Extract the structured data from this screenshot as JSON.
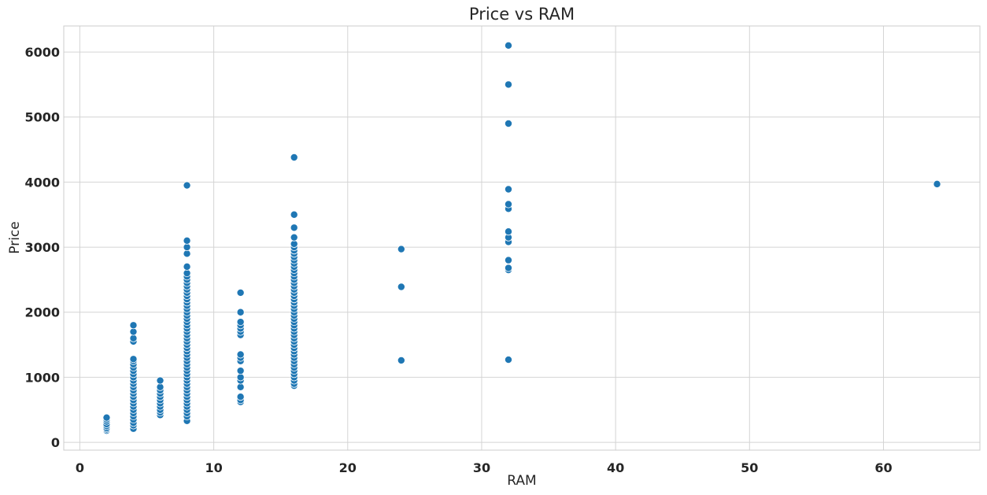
{
  "chart_data": {
    "type": "scatter",
    "title": "Price vs RAM",
    "xlabel": "RAM",
    "ylabel": "Price",
    "xlim": [
      -1.2,
      67.2
    ],
    "ylim": [
      -120,
      6400
    ],
    "xticks": [
      0,
      10,
      20,
      30,
      40,
      50,
      60
    ],
    "yticks": [
      0,
      1000,
      2000,
      3000,
      4000,
      5000,
      6000
    ],
    "grid": true,
    "legend": "none",
    "point_color": "#1f77b4",
    "points": [
      {
        "x": 2,
        "y": 180
      },
      {
        "x": 2,
        "y": 200
      },
      {
        "x": 2,
        "y": 220
      },
      {
        "x": 2,
        "y": 250
      },
      {
        "x": 2,
        "y": 280
      },
      {
        "x": 2,
        "y": 320
      },
      {
        "x": 2,
        "y": 350
      },
      {
        "x": 2,
        "y": 380
      },
      {
        "x": 4,
        "y": 210
      },
      {
        "x": 4,
        "y": 260
      },
      {
        "x": 4,
        "y": 300
      },
      {
        "x": 4,
        "y": 350
      },
      {
        "x": 4,
        "y": 400
      },
      {
        "x": 4,
        "y": 450
      },
      {
        "x": 4,
        "y": 500
      },
      {
        "x": 4,
        "y": 550
      },
      {
        "x": 4,
        "y": 600
      },
      {
        "x": 4,
        "y": 650
      },
      {
        "x": 4,
        "y": 700
      },
      {
        "x": 4,
        "y": 750
      },
      {
        "x": 4,
        "y": 800
      },
      {
        "x": 4,
        "y": 850
      },
      {
        "x": 4,
        "y": 900
      },
      {
        "x": 4,
        "y": 950
      },
      {
        "x": 4,
        "y": 1000
      },
      {
        "x": 4,
        "y": 1050
      },
      {
        "x": 4,
        "y": 1100
      },
      {
        "x": 4,
        "y": 1150
      },
      {
        "x": 4,
        "y": 1200
      },
      {
        "x": 4,
        "y": 1250
      },
      {
        "x": 4,
        "y": 1280
      },
      {
        "x": 4,
        "y": 1550
      },
      {
        "x": 4,
        "y": 1600
      },
      {
        "x": 4,
        "y": 1700
      },
      {
        "x": 4,
        "y": 1800
      },
      {
        "x": 6,
        "y": 420
      },
      {
        "x": 6,
        "y": 460
      },
      {
        "x": 6,
        "y": 500
      },
      {
        "x": 6,
        "y": 550
      },
      {
        "x": 6,
        "y": 600
      },
      {
        "x": 6,
        "y": 650
      },
      {
        "x": 6,
        "y": 700
      },
      {
        "x": 6,
        "y": 750
      },
      {
        "x": 6,
        "y": 800
      },
      {
        "x": 6,
        "y": 850
      },
      {
        "x": 6,
        "y": 950
      },
      {
        "x": 8,
        "y": 330
      },
      {
        "x": 8,
        "y": 400
      },
      {
        "x": 8,
        "y": 450
      },
      {
        "x": 8,
        "y": 500
      },
      {
        "x": 8,
        "y": 550
      },
      {
        "x": 8,
        "y": 600
      },
      {
        "x": 8,
        "y": 650
      },
      {
        "x": 8,
        "y": 700
      },
      {
        "x": 8,
        "y": 750
      },
      {
        "x": 8,
        "y": 800
      },
      {
        "x": 8,
        "y": 850
      },
      {
        "x": 8,
        "y": 900
      },
      {
        "x": 8,
        "y": 950
      },
      {
        "x": 8,
        "y": 1000
      },
      {
        "x": 8,
        "y": 1050
      },
      {
        "x": 8,
        "y": 1100
      },
      {
        "x": 8,
        "y": 1150
      },
      {
        "x": 8,
        "y": 1200
      },
      {
        "x": 8,
        "y": 1250
      },
      {
        "x": 8,
        "y": 1300
      },
      {
        "x": 8,
        "y": 1350
      },
      {
        "x": 8,
        "y": 1400
      },
      {
        "x": 8,
        "y": 1450
      },
      {
        "x": 8,
        "y": 1500
      },
      {
        "x": 8,
        "y": 1550
      },
      {
        "x": 8,
        "y": 1600
      },
      {
        "x": 8,
        "y": 1650
      },
      {
        "x": 8,
        "y": 1700
      },
      {
        "x": 8,
        "y": 1750
      },
      {
        "x": 8,
        "y": 1800
      },
      {
        "x": 8,
        "y": 1850
      },
      {
        "x": 8,
        "y": 1900
      },
      {
        "x": 8,
        "y": 1950
      },
      {
        "x": 8,
        "y": 2000
      },
      {
        "x": 8,
        "y": 2050
      },
      {
        "x": 8,
        "y": 2100
      },
      {
        "x": 8,
        "y": 2150
      },
      {
        "x": 8,
        "y": 2200
      },
      {
        "x": 8,
        "y": 2250
      },
      {
        "x": 8,
        "y": 2300
      },
      {
        "x": 8,
        "y": 2350
      },
      {
        "x": 8,
        "y": 2400
      },
      {
        "x": 8,
        "y": 2450
      },
      {
        "x": 8,
        "y": 2500
      },
      {
        "x": 8,
        "y": 2550
      },
      {
        "x": 8,
        "y": 2600
      },
      {
        "x": 8,
        "y": 2700
      },
      {
        "x": 8,
        "y": 2900
      },
      {
        "x": 8,
        "y": 3000
      },
      {
        "x": 8,
        "y": 3100
      },
      {
        "x": 8,
        "y": 3950
      },
      {
        "x": 12,
        "y": 620
      },
      {
        "x": 12,
        "y": 650
      },
      {
        "x": 12,
        "y": 700
      },
      {
        "x": 12,
        "y": 850
      },
      {
        "x": 12,
        "y": 950
      },
      {
        "x": 12,
        "y": 1000
      },
      {
        "x": 12,
        "y": 1100
      },
      {
        "x": 12,
        "y": 1250
      },
      {
        "x": 12,
        "y": 1300
      },
      {
        "x": 12,
        "y": 1350
      },
      {
        "x": 12,
        "y": 1650
      },
      {
        "x": 12,
        "y": 1700
      },
      {
        "x": 12,
        "y": 1750
      },
      {
        "x": 12,
        "y": 1800
      },
      {
        "x": 12,
        "y": 1850
      },
      {
        "x": 12,
        "y": 2000
      },
      {
        "x": 12,
        "y": 2300
      },
      {
        "x": 16,
        "y": 870
      },
      {
        "x": 16,
        "y": 900
      },
      {
        "x": 16,
        "y": 950
      },
      {
        "x": 16,
        "y": 1000
      },
      {
        "x": 16,
        "y": 1050
      },
      {
        "x": 16,
        "y": 1100
      },
      {
        "x": 16,
        "y": 1150
      },
      {
        "x": 16,
        "y": 1200
      },
      {
        "x": 16,
        "y": 1250
      },
      {
        "x": 16,
        "y": 1300
      },
      {
        "x": 16,
        "y": 1350
      },
      {
        "x": 16,
        "y": 1400
      },
      {
        "x": 16,
        "y": 1450
      },
      {
        "x": 16,
        "y": 1500
      },
      {
        "x": 16,
        "y": 1550
      },
      {
        "x": 16,
        "y": 1600
      },
      {
        "x": 16,
        "y": 1650
      },
      {
        "x": 16,
        "y": 1700
      },
      {
        "x": 16,
        "y": 1750
      },
      {
        "x": 16,
        "y": 1800
      },
      {
        "x": 16,
        "y": 1850
      },
      {
        "x": 16,
        "y": 1900
      },
      {
        "x": 16,
        "y": 1950
      },
      {
        "x": 16,
        "y": 2000
      },
      {
        "x": 16,
        "y": 2050
      },
      {
        "x": 16,
        "y": 2100
      },
      {
        "x": 16,
        "y": 2150
      },
      {
        "x": 16,
        "y": 2200
      },
      {
        "x": 16,
        "y": 2250
      },
      {
        "x": 16,
        "y": 2300
      },
      {
        "x": 16,
        "y": 2350
      },
      {
        "x": 16,
        "y": 2400
      },
      {
        "x": 16,
        "y": 2450
      },
      {
        "x": 16,
        "y": 2500
      },
      {
        "x": 16,
        "y": 2550
      },
      {
        "x": 16,
        "y": 2600
      },
      {
        "x": 16,
        "y": 2650
      },
      {
        "x": 16,
        "y": 2700
      },
      {
        "x": 16,
        "y": 2750
      },
      {
        "x": 16,
        "y": 2800
      },
      {
        "x": 16,
        "y": 2850
      },
      {
        "x": 16,
        "y": 2900
      },
      {
        "x": 16,
        "y": 2950
      },
      {
        "x": 16,
        "y": 3000
      },
      {
        "x": 16,
        "y": 3050
      },
      {
        "x": 16,
        "y": 3150
      },
      {
        "x": 16,
        "y": 3300
      },
      {
        "x": 16,
        "y": 3500
      },
      {
        "x": 16,
        "y": 4380
      },
      {
        "x": 24,
        "y": 1260
      },
      {
        "x": 24,
        "y": 2390
      },
      {
        "x": 24,
        "y": 2970
      },
      {
        "x": 32,
        "y": 1270
      },
      {
        "x": 32,
        "y": 2650
      },
      {
        "x": 32,
        "y": 2680
      },
      {
        "x": 32,
        "y": 2800
      },
      {
        "x": 32,
        "y": 3080
      },
      {
        "x": 32,
        "y": 3150
      },
      {
        "x": 32,
        "y": 3240
      },
      {
        "x": 32,
        "y": 3590
      },
      {
        "x": 32,
        "y": 3660
      },
      {
        "x": 32,
        "y": 3890
      },
      {
        "x": 32,
        "y": 4900
      },
      {
        "x": 32,
        "y": 5500
      },
      {
        "x": 32,
        "y": 6100
      },
      {
        "x": 64,
        "y": 3970
      }
    ]
  }
}
